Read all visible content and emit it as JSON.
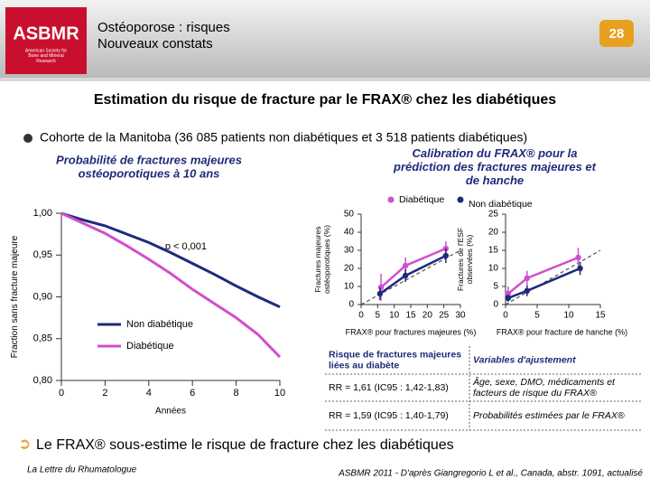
{
  "header": {
    "logo": "ASBMR",
    "logo_caption": "American Society for Bone and Mineral Research",
    "title_line1": "Ostéoporose : risques",
    "title_line2": "Nouveaux constats",
    "page_number": "28"
  },
  "title": "Estimation du risque de fracture par le FRAX® chez les diabétiques",
  "bullet": "Cohorte de la Manitoba (36 085 patients non diabétiques et 3 518 patients diabétiques)",
  "left_heading": "Probabilité de fractures majeures ostéoporotiques à 10 ans",
  "right_heading": "Calibration du FRAX® pour la prédiction des fractures majeures et de hanche",
  "chart_data": [
    {
      "type": "line",
      "ylabel": "Fraction sans fracture majeure",
      "xlabel": "Années",
      "annotation": "p < 0,001",
      "x": [
        0,
        1,
        2,
        3,
        4,
        5,
        6,
        7,
        8,
        9,
        10
      ],
      "xlim": [
        0,
        10
      ],
      "xticks": [
        0,
        2,
        4,
        6,
        8,
        10
      ],
      "ylim": [
        0.8,
        1.0
      ],
      "yticks": [
        {
          "value": 0.8,
          "label": "0,80"
        },
        {
          "value": 0.85,
          "label": "0,85"
        },
        {
          "value": 0.9,
          "label": "0,90"
        },
        {
          "value": 0.95,
          "label": "0,95"
        },
        {
          "value": 1.0,
          "label": "1,00"
        }
      ],
      "legend": "lower left",
      "series": [
        {
          "name": "Non diabétique",
          "color": "#1f2a7a",
          "values": [
            1.0,
            0.992,
            0.985,
            0.975,
            0.965,
            0.953,
            0.94,
            0.927,
            0.913,
            0.9,
            0.888
          ]
        },
        {
          "name": "Diabétique",
          "color": "#d04fcc",
          "values": [
            1.0,
            0.988,
            0.976,
            0.961,
            0.945,
            0.928,
            0.909,
            0.892,
            0.875,
            0.855,
            0.828
          ]
        }
      ]
    },
    {
      "type": "scatter",
      "ylabel": "Fractures majeures ostéoporotiques (%)",
      "xlabel": "FRAX® pour fractures majeures (%)",
      "xlim": [
        0,
        30
      ],
      "xticks": [
        0,
        5,
        10,
        15,
        20,
        25,
        30
      ],
      "ylim": [
        0,
        50
      ],
      "yticks": [
        0,
        10,
        20,
        30,
        40,
        50
      ],
      "legend": "top",
      "series": [
        {
          "name": "Diabétique",
          "color": "#d04fcc",
          "x": [
            6,
            13.4,
            25.6
          ],
          "values": [
            9.5,
            21.5,
            31
          ],
          "errors": [
            7.5,
            4.5,
            4
          ]
        },
        {
          "name": "Non diabétique",
          "color": "#1f2a7a",
          "x": [
            5.7,
            13.4,
            25.6
          ],
          "values": [
            6,
            16,
            27
          ],
          "errors": [
            3.5,
            3.5,
            4
          ]
        }
      ]
    },
    {
      "type": "scatter",
      "ylabel": "Fractures de l'ESF observées (%)",
      "xlabel": "FRAX® pour fracture de hanche (%)",
      "xlim": [
        0,
        15
      ],
      "xticks": [
        0,
        5,
        10,
        15
      ],
      "ylim": [
        0,
        25
      ],
      "yticks": [
        0,
        5,
        10,
        15,
        20,
        25
      ],
      "series": [
        {
          "name": "Diabétique",
          "color": "#d04fcc",
          "x": [
            0.4,
            3.4,
            11.5
          ],
          "values": [
            3,
            7.3,
            13
          ],
          "errors": [
            2,
            2,
            2.7
          ]
        },
        {
          "name": "Non diabétique",
          "color": "#1f2a7a",
          "x": [
            0.4,
            3.4,
            11.8
          ],
          "values": [
            1.8,
            3.8,
            10
          ],
          "errors": [
            1,
            1.5,
            1.8
          ]
        }
      ]
    }
  ],
  "table": {
    "rows": [
      [
        "Risque de fractures majeures liées au diabète",
        "Variables d'ajustement"
      ],
      [
        "RR = 1,61 (IC95 : 1,42-1,83)",
        "Âge, sexe, DMO, médicaments et facteurs de risque du FRAX®"
      ],
      [
        "RR = 1,59 (IC95 : 1,40-1,79)",
        "Probabilités estimées par le FRAX®"
      ]
    ]
  },
  "conclusion": "Le FRAX® sous-estime le risque de fracture chez les diabétiques",
  "footer": {
    "left": "La Lettre du Rhumatologue",
    "right": "ASBMR 2011 - D'après Giangregorio L et al., Canada, abstr. 1091, actualisé"
  }
}
